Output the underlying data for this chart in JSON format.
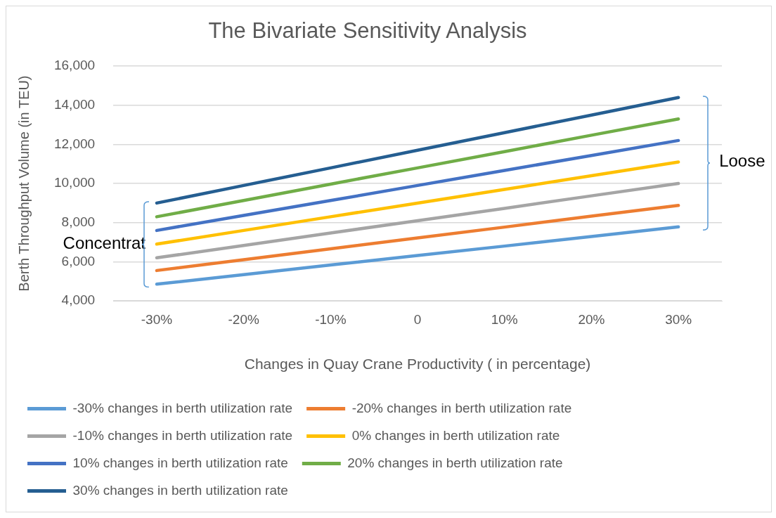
{
  "chart_data": {
    "type": "line",
    "title": "The Bivariate Sensitivity Analysis",
    "xlabel": "Changes in Quay Crane Productivity ( in percentage)",
    "ylabel": "Berth Throughput Volume (in TEU)",
    "categories": [
      "-30%",
      "-20%",
      "-10%",
      "0",
      "10%",
      "20%",
      "30%"
    ],
    "series": [
      {
        "name": "-30% changes in berth utilization rate",
        "color": "#5b9bd5",
        "values": [
          4850,
          5340,
          5830,
          6320,
          6800,
          7290,
          7780
        ]
      },
      {
        "name": "-20% changes in berth utilization rate",
        "color": "#ed7d31",
        "values": [
          5550,
          6100,
          6660,
          7220,
          7770,
          8330,
          8880
        ]
      },
      {
        "name": "-10% changes in berth utilization rate",
        "color": "#a5a5a5",
        "values": [
          6200,
          6830,
          7470,
          8100,
          8730,
          9370,
          10000
        ]
      },
      {
        "name": "0% changes in berth utilization rate",
        "color": "#ffc000",
        "values": [
          6900,
          7600,
          8300,
          9000,
          9700,
          10400,
          11100
        ]
      },
      {
        "name": "10% changes in berth utilization rate",
        "color": "#4472c4",
        "values": [
          7600,
          8370,
          9130,
          9900,
          10670,
          11430,
          12200
        ]
      },
      {
        "name": "20% changes in berth utilization rate",
        "color": "#70ad47",
        "values": [
          8300,
          9130,
          9970,
          10800,
          11630,
          12470,
          13300
        ]
      },
      {
        "name": "30% changes in berth utilization rate",
        "color": "#255e91",
        "values": [
          9000,
          9900,
          10800,
          11700,
          12600,
          13500,
          14400
        ]
      }
    ],
    "ylim": [
      4000,
      16000
    ],
    "yticks": [
      {
        "value": 4000,
        "label": "4,000"
      },
      {
        "value": 6000,
        "label": "6,000"
      },
      {
        "value": 8000,
        "label": "8,000"
      },
      {
        "value": 10000,
        "label": "10,000"
      },
      {
        "value": 12000,
        "label": "12,000"
      },
      {
        "value": 14000,
        "label": "14,000"
      },
      {
        "value": 16000,
        "label": "16,000"
      }
    ],
    "grid": "y",
    "legend": "bottom",
    "marker": "none",
    "line_style": "solid",
    "annotations": [
      {
        "text": "Concentrat",
        "x": "-30%",
        "y": 6900
      },
      {
        "text": "Loose",
        "x": "30%",
        "y": 11100
      }
    ]
  }
}
